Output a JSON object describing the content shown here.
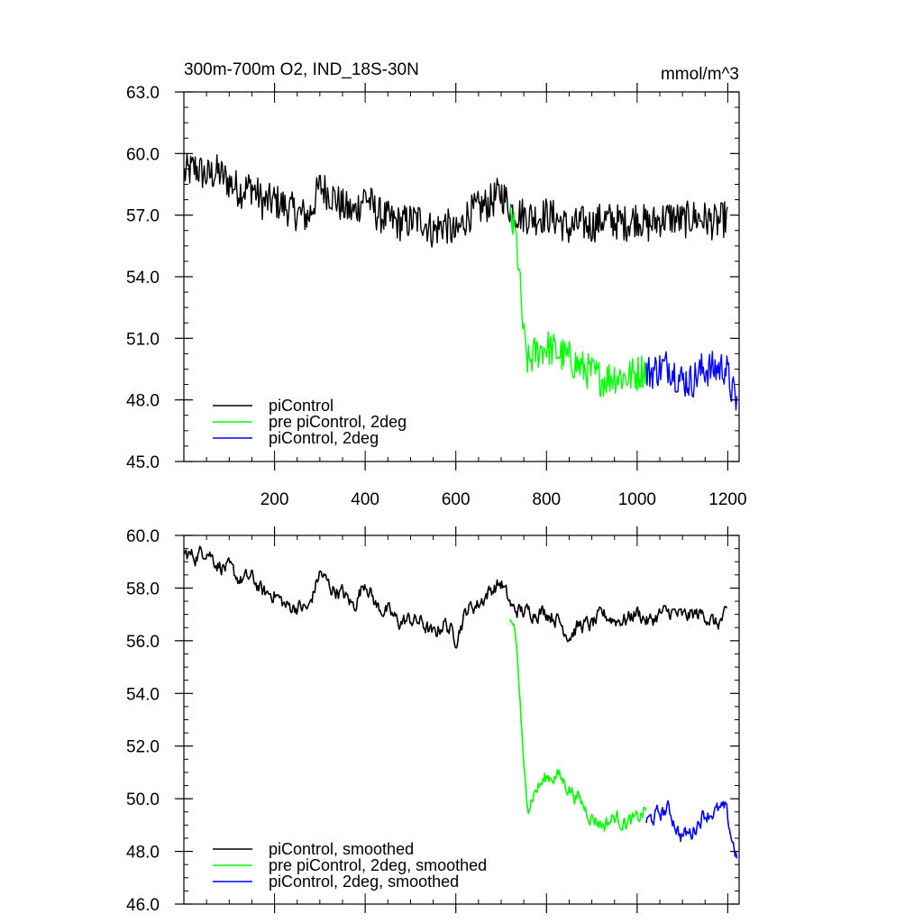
{
  "chart_data": [
    {
      "type": "line",
      "title_left": "300m-700m O2, IND_18S-30N",
      "title_right": "mmol/m^3",
      "xlabel": "",
      "ylabel": "",
      "xlim": [
        0,
        1225
      ],
      "ylim": [
        45,
        63
      ],
      "xticks": [
        200,
        400,
        600,
        800,
        1000,
        1200
      ],
      "xtick_labels": [
        "200",
        "400",
        "600",
        "800",
        "1000",
        "1200"
      ],
      "yticks": [
        45,
        48,
        51,
        54,
        57,
        60,
        63
      ],
      "ytick_labels": [
        "45.0",
        "48.0",
        "51.0",
        "54.0",
        "57.0",
        "60.0",
        "63.0"
      ],
      "legend_position": "bottom-left",
      "series": [
        {
          "name": "piControl",
          "color": "#000000",
          "x_range": [
            1,
            1200
          ],
          "x": [
            1,
            25,
            50,
            75,
            100,
            125,
            150,
            175,
            200,
            225,
            250,
            275,
            300,
            325,
            350,
            375,
            400,
            425,
            450,
            475,
            500,
            525,
            550,
            575,
            600,
            625,
            650,
            675,
            700,
            725,
            750,
            775,
            800,
            825,
            850,
            875,
            900,
            925,
            950,
            975,
            1000,
            1025,
            1050,
            1075,
            1100,
            1125,
            1150,
            1175,
            1200
          ],
          "y": [
            59.0,
            59.3,
            58.9,
            59.1,
            58.6,
            58.2,
            58.4,
            57.6,
            57.7,
            57.4,
            57.1,
            56.9,
            58.4,
            58.0,
            57.4,
            57.1,
            58.0,
            57.1,
            56.8,
            56.6,
            56.7,
            56.8,
            56.2,
            56.6,
            56.0,
            57.0,
            57.3,
            57.6,
            58.1,
            57.2,
            57.0,
            56.9,
            57.0,
            56.8,
            56.3,
            56.6,
            56.5,
            56.8,
            56.7,
            56.6,
            56.9,
            56.5,
            56.8,
            56.9,
            56.7,
            56.9,
            56.8,
            56.6,
            56.9
          ],
          "noise_amplitude": 0.9
        },
        {
          "name": "pre piControl, 2deg",
          "color": "#00ff00",
          "x_range": [
            720,
            1020
          ],
          "x": [
            720,
            730,
            735,
            740,
            745,
            750,
            755,
            760,
            775,
            800,
            825,
            850,
            875,
            900,
            925,
            950,
            975,
            1000,
            1020
          ],
          "y": [
            56.8,
            56.2,
            55.5,
            54.0,
            52.5,
            51.0,
            50.2,
            49.8,
            50.3,
            50.6,
            50.3,
            50.0,
            49.6,
            49.3,
            49.0,
            49.2,
            49.1,
            49.3,
            49.6
          ],
          "noise_amplitude": 0.9
        },
        {
          "name": "piControl, 2deg",
          "color": "#0000ff",
          "x_range": [
            1020,
            1220
          ],
          "x": [
            1020,
            1045,
            1070,
            1095,
            1120,
            1145,
            1170,
            1195,
            1210,
            1220
          ],
          "y": [
            49.3,
            49.5,
            49.7,
            49.0,
            48.9,
            49.5,
            49.5,
            49.6,
            48.4,
            47.9
          ],
          "noise_amplitude": 0.9
        }
      ]
    },
    {
      "type": "line",
      "xlabel": "",
      "ylabel": "",
      "xlim": [
        0,
        1225
      ],
      "ylim": [
        46,
        60
      ],
      "xticks": [
        200,
        400,
        600,
        800,
        1000,
        1200
      ],
      "yticks": [
        46,
        48,
        50,
        52,
        54,
        56,
        58,
        60
      ],
      "ytick_labels": [
        "46.0",
        "48.0",
        "50.0",
        "52.0",
        "54.0",
        "56.0",
        "58.0",
        "60.0"
      ],
      "legend_position": "bottom-left",
      "series": [
        {
          "name": "piControl, smoothed",
          "color": "#000000",
          "x_range": [
            1,
            1200
          ],
          "x": [
            1,
            25,
            50,
            75,
            100,
            125,
            150,
            175,
            200,
            225,
            250,
            275,
            300,
            325,
            350,
            375,
            400,
            425,
            450,
            475,
            500,
            525,
            550,
            575,
            600,
            625,
            650,
            675,
            700,
            725,
            750,
            775,
            800,
            825,
            850,
            875,
            900,
            925,
            950,
            975,
            1000,
            1025,
            1050,
            1075,
            1100,
            1125,
            1150,
            1175,
            1200
          ],
          "y": [
            59.3,
            59.2,
            59.5,
            58.9,
            58.7,
            58.3,
            58.4,
            57.8,
            57.8,
            57.3,
            57.3,
            57.2,
            58.6,
            58.0,
            57.8,
            57.3,
            58.3,
            57.3,
            57.1,
            56.7,
            56.8,
            56.7,
            56.2,
            56.7,
            56.1,
            57.2,
            57.4,
            57.9,
            58.2,
            57.2,
            57.1,
            57.1,
            57.1,
            56.8,
            56.2,
            56.6,
            56.6,
            57.0,
            56.8,
            56.8,
            57.1,
            56.7,
            57.0,
            57.1,
            56.9,
            57.0,
            57.0,
            56.6,
            57.0
          ],
          "noise_amplitude": 0.35
        },
        {
          "name": "pre piControl, 2deg, smoothed",
          "color": "#00ff00",
          "x_range": [
            720,
            1020
          ],
          "x": [
            720,
            730,
            735,
            740,
            745,
            750,
            755,
            760,
            775,
            800,
            825,
            850,
            875,
            900,
            925,
            950,
            975,
            1000,
            1020
          ],
          "y": [
            56.8,
            56.5,
            55.5,
            54.2,
            52.6,
            51.0,
            50.3,
            49.8,
            50.3,
            50.8,
            50.9,
            50.4,
            49.9,
            49.3,
            49.0,
            49.3,
            49.1,
            49.2,
            49.6
          ],
          "noise_amplitude": 0.35
        },
        {
          "name": "piControl, 2deg, smoothed",
          "color": "#0000ff",
          "x_range": [
            1020,
            1220
          ],
          "x": [
            1020,
            1045,
            1070,
            1095,
            1120,
            1145,
            1170,
            1195,
            1210,
            1220
          ],
          "y": [
            49.1,
            49.4,
            49.6,
            48.6,
            48.7,
            49.4,
            49.5,
            49.6,
            48.4,
            47.8
          ],
          "noise_amplitude": 0.35
        }
      ]
    }
  ]
}
